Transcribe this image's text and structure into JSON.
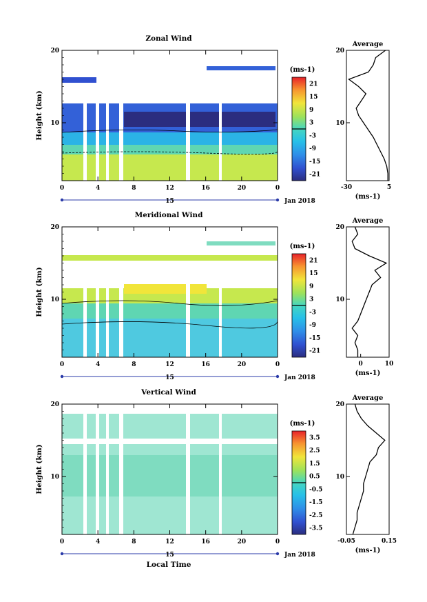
{
  "chart_data": [
    {
      "type": "heatmap",
      "title": "Zonal Wind",
      "ylabel": "Height (km)",
      "ylim": [
        2,
        20
      ],
      "yticks": [
        "10",
        "20"
      ],
      "xticks": [
        "0",
        "4",
        "8",
        "12",
        "16",
        "20",
        "0"
      ],
      "xlim": [
        0,
        24
      ],
      "date_mark": "15",
      "date_label": "Jan 2018",
      "colorbar": {
        "unit": "(ms-1)",
        "ticks": [
          "21",
          "15",
          "9",
          "3",
          "-3",
          "-9",
          "-15",
          "-21"
        ],
        "range": [
          -24,
          24
        ]
      },
      "profile": {
        "title": "Average",
        "xlabel": "(ms-1)",
        "xticks": [
          "-30",
          "5"
        ],
        "xlim": [
          -30,
          5
        ],
        "yticks": [
          "10",
          "20"
        ],
        "points": [
          [
            4,
            2
          ],
          [
            4,
            3
          ],
          [
            3,
            4
          ],
          [
            1,
            5
          ],
          [
            -2,
            6
          ],
          [
            -5,
            7
          ],
          [
            -8,
            8
          ],
          [
            -12,
            9
          ],
          [
            -16,
            10
          ],
          [
            -20,
            11
          ],
          [
            -22,
            12
          ],
          [
            -18,
            13
          ],
          [
            -14,
            14
          ],
          [
            -20,
            15
          ],
          [
            -28,
            16
          ],
          [
            -12,
            17
          ],
          [
            -8,
            18
          ],
          [
            -6,
            19
          ],
          [
            2,
            20
          ]
        ]
      }
    },
    {
      "type": "heatmap",
      "title": "Meridional Wind",
      "ylabel": "Height (km)",
      "ylim": [
        2,
        20
      ],
      "yticks": [
        "10",
        "20"
      ],
      "xticks": [
        "0",
        "4",
        "8",
        "12",
        "16",
        "20",
        "0"
      ],
      "xlim": [
        0,
        24
      ],
      "date_mark": "15",
      "date_label": "Jan 2018",
      "colorbar": {
        "unit": "(ms-1)",
        "ticks": [
          "21",
          "15",
          "9",
          "3",
          "-3",
          "-9",
          "-15",
          "-21"
        ],
        "range": [
          -24,
          24
        ]
      },
      "profile": {
        "title": "Average",
        "xlabel": "(ms-1)",
        "xticks": [
          "0",
          "10"
        ],
        "xlim": [
          -5,
          10
        ],
        "yticks": [
          "10",
          "20"
        ],
        "points": [
          [
            -1,
            2
          ],
          [
            -1,
            3
          ],
          [
            -2,
            4
          ],
          [
            -1,
            5
          ],
          [
            -3,
            6
          ],
          [
            -1,
            7
          ],
          [
            0,
            8
          ],
          [
            1,
            9
          ],
          [
            2,
            10
          ],
          [
            3,
            11
          ],
          [
            4,
            12
          ],
          [
            7,
            13
          ],
          [
            5,
            14
          ],
          [
            9,
            15
          ],
          [
            3,
            16
          ],
          [
            -2,
            17
          ],
          [
            -3,
            18
          ],
          [
            -1,
            19
          ],
          [
            -2,
            20
          ]
        ]
      }
    },
    {
      "type": "heatmap",
      "title": "Vertical Wind",
      "ylabel": "Height (km)",
      "xlabel": "Local Time",
      "ylim": [
        2,
        20
      ],
      "yticks": [
        "10",
        "20"
      ],
      "xticks": [
        "0",
        "4",
        "8",
        "12",
        "16",
        "20",
        "0"
      ],
      "xlim": [
        0,
        24
      ],
      "date_mark": "15",
      "date_label": "Jan 2018",
      "colorbar": {
        "unit": "(ms-1)",
        "ticks": [
          "3.5",
          "2.5",
          "1.5",
          "0.5",
          "-0.5",
          "-1.5",
          "-2.5",
          "-3.5"
        ],
        "range": [
          -4,
          4
        ]
      },
      "profile": {
        "title": "Average",
        "xlabel": "(ms-1)",
        "xticks": [
          "-0.05",
          "0.15"
        ],
        "xlim": [
          -0.05,
          0.15
        ],
        "yticks": [
          "10",
          "20"
        ],
        "points": [
          [
            -0.02,
            2
          ],
          [
            -0.01,
            3
          ],
          [
            0.0,
            4
          ],
          [
            0.0,
            5
          ],
          [
            0.01,
            6
          ],
          [
            0.02,
            7
          ],
          [
            0.03,
            8
          ],
          [
            0.03,
            9
          ],
          [
            0.04,
            10
          ],
          [
            0.05,
            11
          ],
          [
            0.06,
            12
          ],
          [
            0.09,
            13
          ],
          [
            0.1,
            14
          ],
          [
            0.13,
            15
          ],
          [
            0.09,
            16
          ],
          [
            0.05,
            17
          ],
          [
            0.02,
            18
          ],
          [
            0.0,
            19
          ],
          [
            -0.01,
            20
          ]
        ]
      }
    }
  ]
}
